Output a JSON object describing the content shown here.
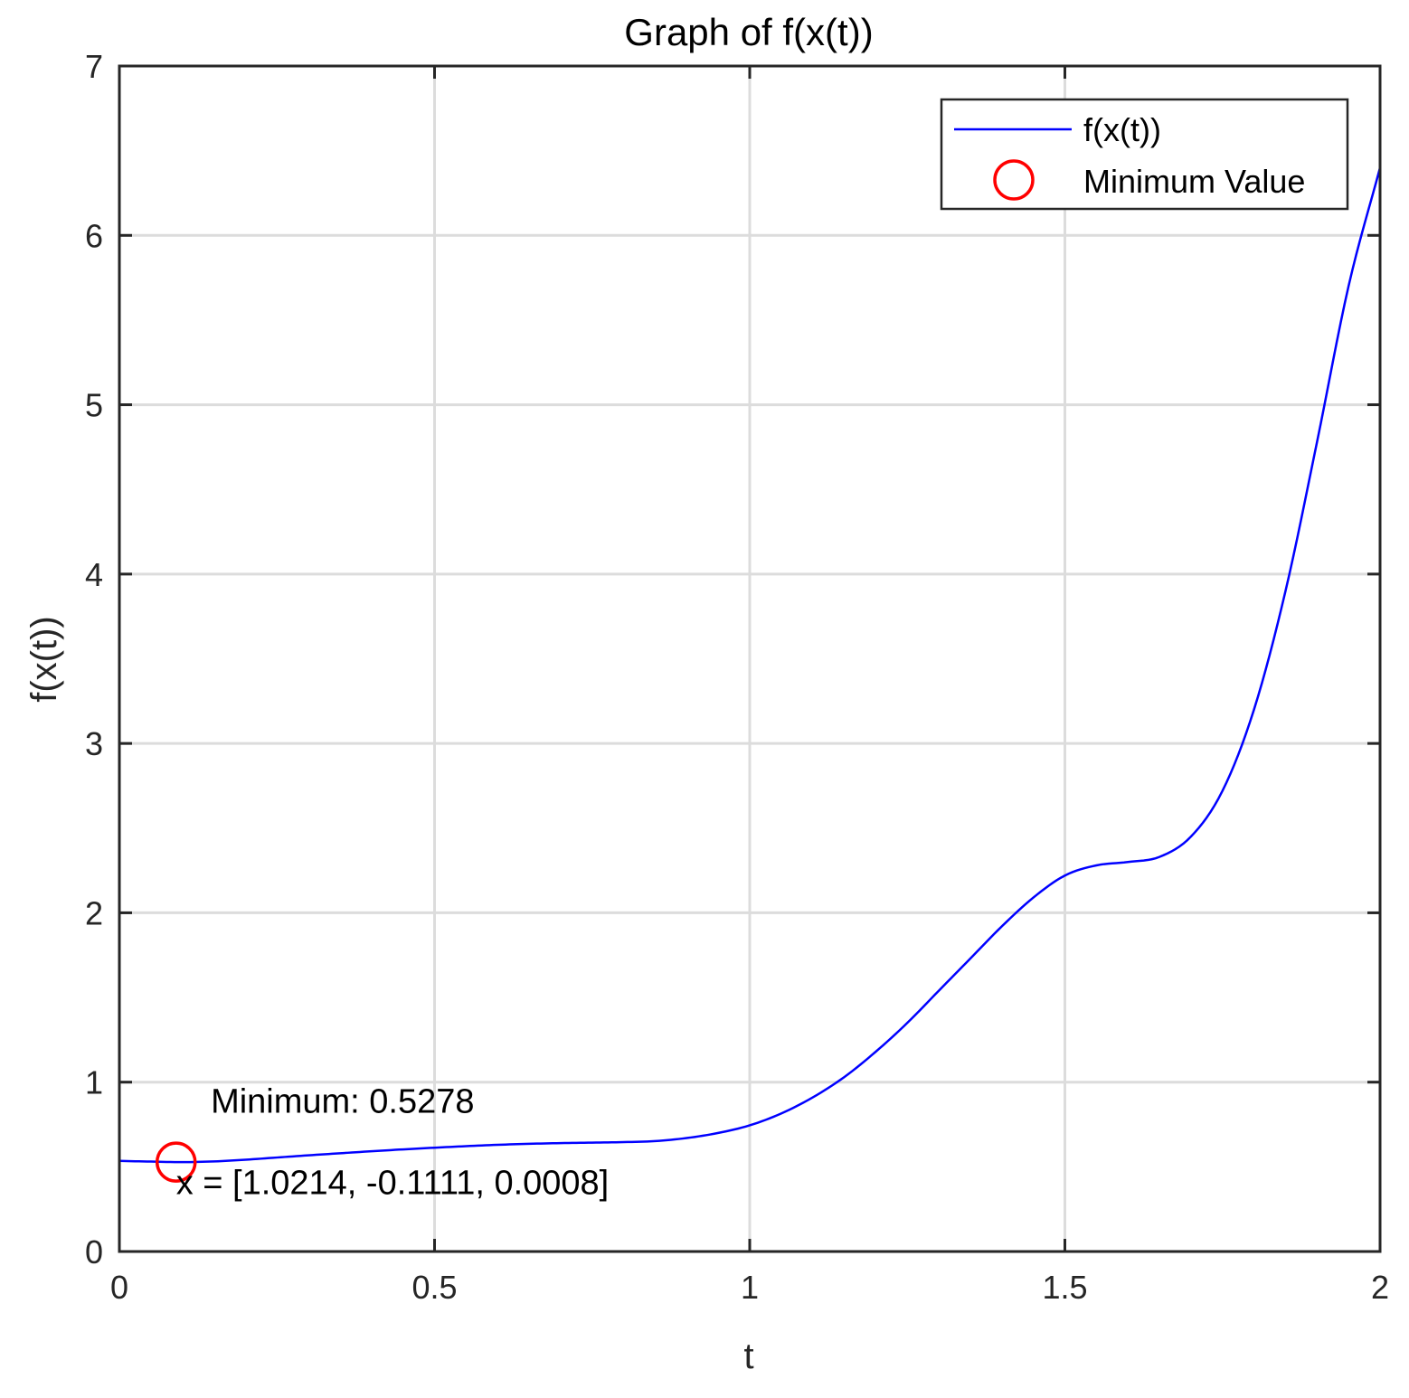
{
  "chart_data": {
    "type": "line",
    "title": "Graph of f(x(t))",
    "xlabel": "t",
    "ylabel": "f(x(t))",
    "xlim": [
      0,
      2
    ],
    "ylim": [
      0,
      7
    ],
    "grid": true,
    "xticks": [
      0,
      0.5,
      1,
      1.5,
      2
    ],
    "xtick_labels": [
      "0",
      "0.5",
      "1",
      "1.5",
      "2"
    ],
    "yticks": [
      0,
      1,
      2,
      3,
      4,
      5,
      6,
      7
    ],
    "ytick_labels": [
      "0",
      "1",
      "2",
      "3",
      "4",
      "5",
      "6",
      "7"
    ],
    "series": [
      {
        "name": "f(x(t))",
        "color": "#0000ff",
        "x": [
          0,
          0.05,
          0.1,
          0.15,
          0.2,
          0.25,
          0.3,
          0.35,
          0.4,
          0.45,
          0.5,
          0.55,
          0.6,
          0.65,
          0.7,
          0.75,
          0.8,
          0.85,
          0.9,
          0.95,
          1.0,
          1.05,
          1.1,
          1.15,
          1.2,
          1.25,
          1.3,
          1.35,
          1.4,
          1.45,
          1.5,
          1.55,
          1.6,
          1.65,
          1.7,
          1.75,
          1.8,
          1.85,
          1.9,
          1.95,
          2.0
        ],
        "y": [
          0.535,
          0.531,
          0.5278,
          0.532,
          0.542,
          0.555,
          0.568,
          0.58,
          0.592,
          0.603,
          0.613,
          0.622,
          0.63,
          0.636,
          0.64,
          0.643,
          0.646,
          0.652,
          0.67,
          0.7,
          0.745,
          0.815,
          0.91,
          1.03,
          1.18,
          1.35,
          1.54,
          1.73,
          1.92,
          2.09,
          2.22,
          2.28,
          2.3,
          2.33,
          2.45,
          2.72,
          3.2,
          3.9,
          4.78,
          5.7,
          6.4
        ]
      }
    ],
    "markers": [
      {
        "name": "Minimum Value",
        "x": 0.09,
        "y": 0.5278,
        "shape": "circle",
        "color": "#ff0000"
      }
    ],
    "annotations": [
      {
        "text": "Minimum: 0.5278",
        "x": 0.145,
        "y": 0.82
      },
      {
        "text": "x = [1.0214, -0.1111, 0.0008]",
        "x": 0.09,
        "y": 0.34
      }
    ],
    "legend": {
      "placement": "top-right",
      "entries": [
        {
          "label": "f(x(t))",
          "kind": "line",
          "color": "#0000ff"
        },
        {
          "label": "Minimum Value",
          "kind": "circle",
          "color": "#ff0000"
        }
      ]
    }
  }
}
